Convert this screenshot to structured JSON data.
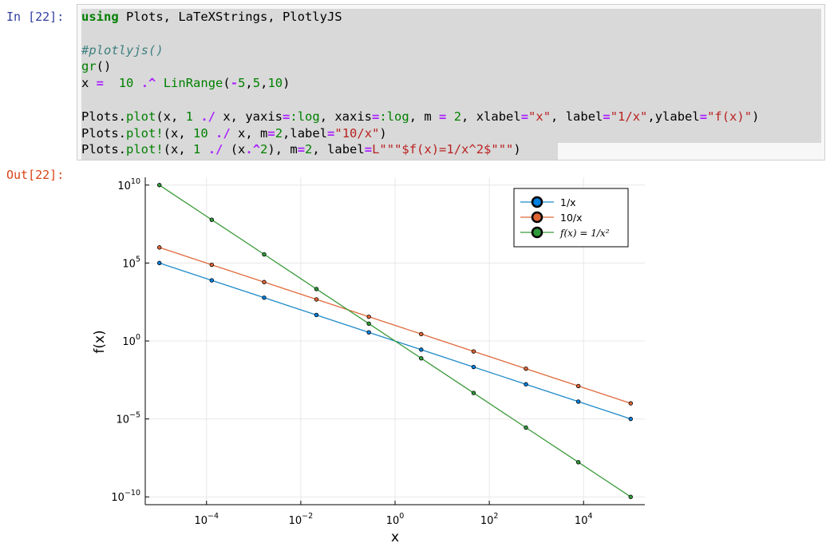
{
  "cell": {
    "in_prompt": "In [22]:",
    "out_prompt": "Out[22]:",
    "code": [
      [
        [
          "kw",
          "using"
        ],
        [
          "",
          "  Plots, LaTeXStrings, PlotlyJS"
        ]
      ],
      [],
      [
        [
          "cm",
          "#plotlyjs()"
        ]
      ],
      [
        [
          "fn",
          "gr"
        ],
        [
          "",
          "()"
        ]
      ],
      [
        [
          "",
          "x "
        ],
        [
          "op",
          "="
        ],
        [
          "",
          "  "
        ],
        [
          "num",
          "10"
        ],
        [
          "",
          ""
        ],
        [
          "op",
          " .^"
        ],
        [
          "",
          ""
        ],
        [
          "fn",
          " LinRange"
        ],
        [
          "",
          "("
        ],
        [
          "op",
          "-"
        ],
        [
          "num",
          "5"
        ],
        [
          "",
          ","
        ],
        [
          "num",
          "5"
        ],
        [
          "",
          ","
        ],
        [
          "num",
          "10"
        ],
        [
          "",
          ")"
        ]
      ],
      [],
      [
        [
          "",
          "Plots."
        ],
        [
          "fn",
          "plot"
        ],
        [
          "",
          "(x, "
        ],
        [
          "num",
          "1"
        ],
        [
          "op",
          " ./"
        ],
        [
          "",
          ""
        ],
        [
          "",
          ""
        ],
        [
          "",
          ""
        ],
        [
          "",
          ""
        ],
        [
          "",
          ""
        ],
        [
          "",
          ""
        ],
        [
          "",
          ""
        ],
        [
          "",
          ""
        ],
        [
          "",
          ""
        ],
        [
          "",
          ""
        ],
        [
          "",
          ""
        ],
        [
          "",
          ""
        ],
        [
          "",
          ""
        ],
        [
          "",
          ""
        ],
        [
          "",
          ""
        ],
        [
          "",
          ""
        ],
        [
          "",
          ""
        ],
        [
          "",
          ""
        ],
        [
          "",
          ""
        ],
        [
          "",
          ""
        ],
        [
          "",
          ""
        ],
        [
          "",
          ""
        ],
        [
          "",
          ""
        ]
      ]
    ]
  },
  "code_text": [
    "using Plots, LaTeXStrings, PlotlyJS",
    "",
    "#plotlyjs()",
    "gr()",
    "x =  10 .^ LinRange(-5,5,10)",
    "",
    "Plots.plot(x, 1 ./ x, yaxis=:log, xaxis=:log, m = 2, xlabel=\"x\", label=\"1/x\",ylabel=\"f(x)\")",
    "Plots.plot!(x, 10 ./ x, m=2,label=\"10/x\")",
    "Plots.plot!(x, 1 ./ (x.^2), m=2, label=L\"\"\"$f(x)=1/x^2$\"\"\")"
  ],
  "colors": {
    "series1": "#1f8ac9",
    "series2": "#e06a3c",
    "series3": "#3a9a3a",
    "marker1": "#0080e0",
    "marker2": "#e06535",
    "marker3": "#2f9a3a"
  },
  "chart_data": {
    "type": "line",
    "xscale": "log",
    "yscale": "log",
    "x": [
      1e-05,
      0.000129,
      0.00167,
      0.0215,
      0.278,
      3.59,
      46.4,
      599,
      7743,
      100000.0
    ],
    "series": [
      {
        "name": "1/x",
        "values": [
          100000.0,
          7743,
          599,
          46.4,
          3.59,
          0.278,
          0.0215,
          0.00167,
          0.000129,
          1e-05
        ]
      },
      {
        "name": "10/x",
        "values": [
          1000000.0,
          77426,
          5995,
          464,
          35.9,
          2.78,
          0.215,
          0.0167,
          0.00129,
          0.0001
        ]
      },
      {
        "name": "f(x)=1/x^2",
        "values": [
          10000000000.0,
          59900000.0,
          359000.0,
          2154,
          12.9,
          0.0774,
          0.000464,
          2.78e-06,
          1.67e-08,
          1e-10
        ]
      }
    ],
    "xlabel": "x",
    "ylabel": "f(x)",
    "xticks": [
      {
        "exp": "−4",
        "value": 0.0001
      },
      {
        "exp": "−2",
        "value": 0.01
      },
      {
        "exp": "0",
        "value": 1
      },
      {
        "exp": "2",
        "value": 100
      },
      {
        "exp": "4",
        "value": 10000.0
      }
    ],
    "yticks": [
      {
        "exp": "10",
        "value": 10000000000.0
      },
      {
        "exp": "5",
        "value": 100000.0
      },
      {
        "exp": "0",
        "value": 1
      },
      {
        "exp": "−5",
        "value": 1e-05
      },
      {
        "exp": "−10",
        "value": 1e-10
      }
    ],
    "tick_base": "10",
    "legend": {
      "position": "top-right",
      "entries": [
        "1/x",
        "10/x",
        "f(x) = 1/x²"
      ]
    },
    "grid": true
  }
}
